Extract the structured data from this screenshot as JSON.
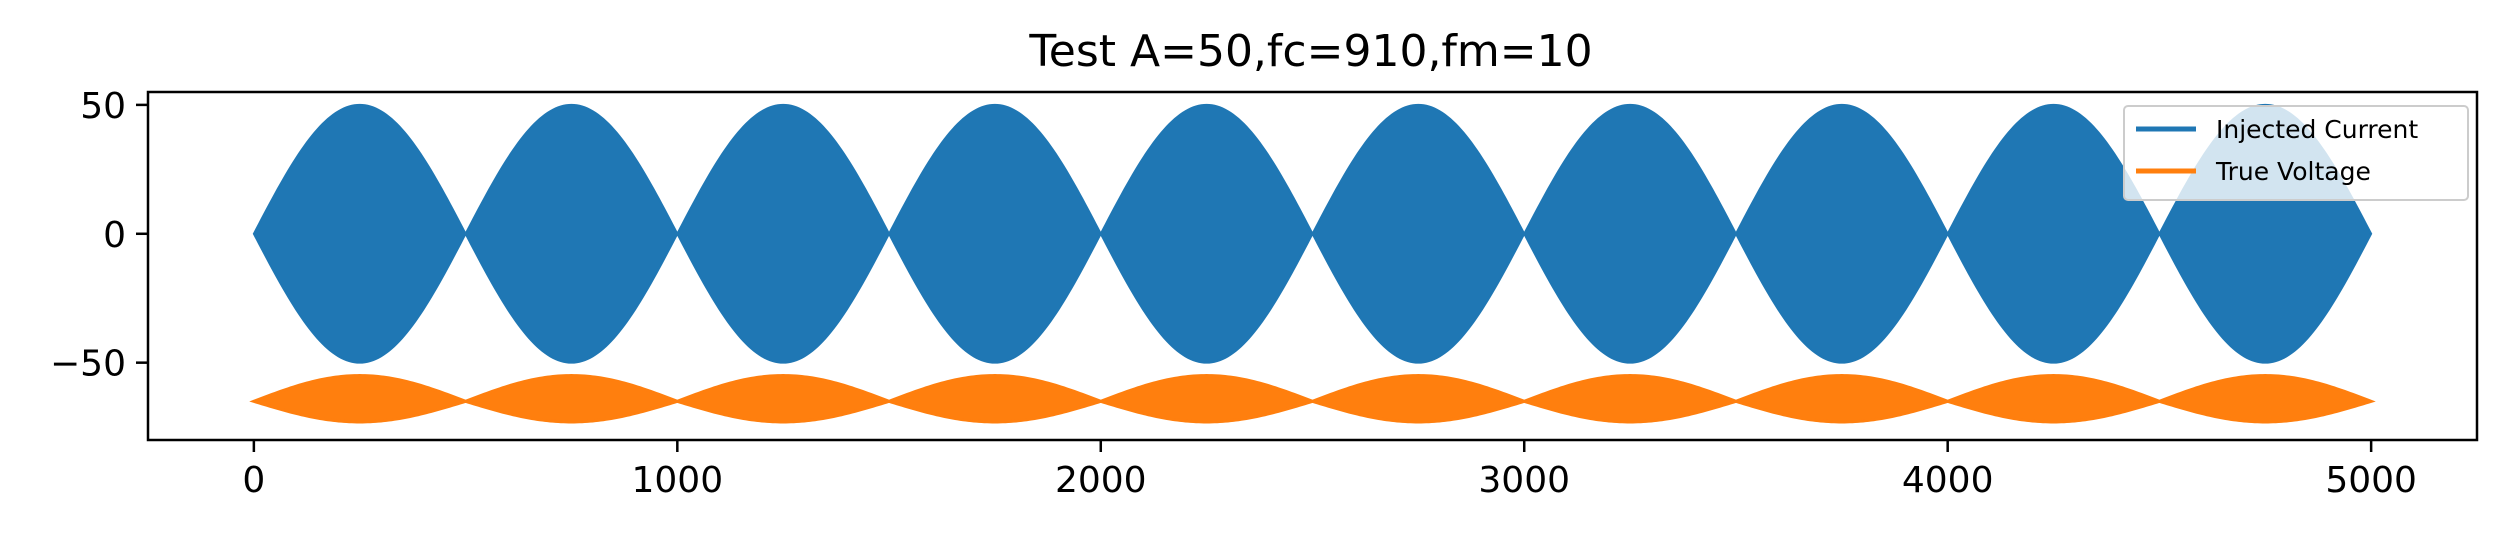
{
  "chart_data": {
    "type": "line",
    "title": "Test A=50,fc=910,fm=10",
    "xlabel": "",
    "ylabel": "",
    "xlim": [
      -250,
      5250
    ],
    "ylim": [
      -80,
      55
    ],
    "x_ticks": [
      0,
      1000,
      2000,
      3000,
      4000,
      5000
    ],
    "y_ticks": [
      50,
      0,
      -50
    ],
    "y_tick_labels": [
      "50",
      "0",
      "−50"
    ],
    "grid": false,
    "legend_position": "top-right",
    "series": [
      {
        "name": "Injected Current",
        "color": "#1f77b4",
        "x_range": [
          0,
          5000
        ],
        "envelope": "±50·|sin(π·x/500)|",
        "peak_x": [
          250,
          750,
          1250,
          1750,
          2250,
          2750,
          3250,
          3750,
          4250,
          4750
        ],
        "peak_value": 50,
        "min_value": -50,
        "zero_crossings": [
          0,
          500,
          1000,
          1500,
          2000,
          2500,
          3000,
          3500,
          4000,
          4500,
          5000
        ]
      },
      {
        "name": "True Voltage",
        "color": "#ff7f0e",
        "x_range": [
          0,
          5000
        ],
        "center": -65,
        "peak_x": [
          250,
          750,
          1250,
          1750,
          2250,
          2750,
          3250,
          3750,
          4250,
          4750
        ],
        "upper_peak": -55,
        "lower_trough": -73,
        "node_value": -65
      }
    ]
  }
}
